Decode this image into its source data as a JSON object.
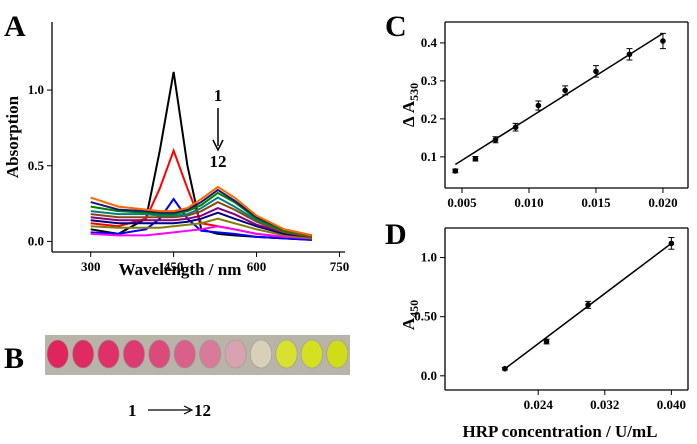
{
  "chart_data": [
    {
      "type": "line",
      "panel": "A",
      "xlabel": "Wavelength / nm",
      "ylabel": "Absorption",
      "annotations": [
        "1",
        "12"
      ],
      "x": [
        300,
        350,
        400,
        425,
        450,
        475,
        500,
        530,
        560,
        600,
        650,
        700
      ],
      "series": [
        {
          "color": "#000000",
          "values": [
            0.08,
            0.05,
            0.15,
            0.6,
            1.12,
            0.5,
            0.08,
            0.05,
            0.04,
            0.03,
            0.02,
            0.01
          ]
        },
        {
          "color": "#ff0000",
          "values": [
            0.12,
            0.1,
            0.15,
            0.35,
            0.6,
            0.35,
            0.12,
            0.1,
            0.08,
            0.05,
            0.03,
            0.02
          ]
        },
        {
          "color": "#0000ff",
          "values": [
            0.06,
            0.05,
            0.08,
            0.15,
            0.28,
            0.15,
            0.07,
            0.06,
            0.05,
            0.03,
            0.02,
            0.01
          ]
        },
        {
          "color": "#ff00ff",
          "values": [
            0.05,
            0.04,
            0.04,
            0.05,
            0.06,
            0.07,
            0.08,
            0.1,
            0.08,
            0.05,
            0.03,
            0.02
          ]
        },
        {
          "color": "#808000",
          "values": [
            0.1,
            0.09,
            0.09,
            0.09,
            0.1,
            0.11,
            0.12,
            0.15,
            0.12,
            0.08,
            0.04,
            0.02
          ]
        },
        {
          "color": "#000080",
          "values": [
            0.14,
            0.12,
            0.12,
            0.12,
            0.12,
            0.13,
            0.15,
            0.19,
            0.15,
            0.1,
            0.05,
            0.03
          ]
        },
        {
          "color": "#800080",
          "values": [
            0.16,
            0.14,
            0.14,
            0.14,
            0.14,
            0.15,
            0.17,
            0.22,
            0.18,
            0.11,
            0.06,
            0.03
          ]
        },
        {
          "color": "#8b4513",
          "values": [
            0.18,
            0.16,
            0.16,
            0.16,
            0.16,
            0.17,
            0.2,
            0.26,
            0.21,
            0.13,
            0.06,
            0.03
          ]
        },
        {
          "color": "#008080",
          "values": [
            0.2,
            0.18,
            0.18,
            0.17,
            0.17,
            0.18,
            0.22,
            0.29,
            0.23,
            0.14,
            0.07,
            0.04
          ]
        },
        {
          "color": "#008000",
          "values": [
            0.23,
            0.2,
            0.19,
            0.18,
            0.18,
            0.2,
            0.24,
            0.32,
            0.26,
            0.15,
            0.07,
            0.04
          ]
        },
        {
          "color": "#1a1a6e",
          "values": [
            0.26,
            0.21,
            0.2,
            0.19,
            0.19,
            0.21,
            0.26,
            0.34,
            0.27,
            0.16,
            0.08,
            0.04
          ]
        },
        {
          "color": "#ff6600",
          "values": [
            0.29,
            0.23,
            0.21,
            0.2,
            0.2,
            0.22,
            0.28,
            0.36,
            0.29,
            0.17,
            0.08,
            0.04
          ]
        }
      ],
      "xlim": [
        230,
        760
      ],
      "xticks": [
        300,
        450,
        600,
        750
      ],
      "ylim": [
        -0.07,
        1.45
      ],
      "yticks": [
        {
          "value": 0,
          "label": "0.0"
        },
        {
          "value": 0.5,
          "label": "0.5"
        },
        {
          "value": 1,
          "label": "1.0"
        }
      ]
    },
    {
      "type": "scatter",
      "panel": "C",
      "ylabel": "Δ A",
      "ylabel_sub": "530",
      "color": "#000000",
      "x": [
        0.0045,
        0.006,
        0.0075,
        0.009,
        0.0107,
        0.0127,
        0.015,
        0.0175,
        0.02
      ],
      "values": [
        0.063,
        0.095,
        0.145,
        0.178,
        0.235,
        0.275,
        0.325,
        0.37,
        0.405
      ],
      "errors": [
        0.005,
        0.006,
        0.008,
        0.01,
        0.012,
        0.012,
        0.015,
        0.015,
        0.02
      ],
      "fit": {
        "x": [
          0.0045,
          0.02
        ],
        "values": [
          0.08,
          0.425
        ]
      },
      "xlim": [
        0.00373,
        0.02187
      ],
      "xticks": [
        0.005,
        {
          "value": 0.01,
          "label": "0.010"
        },
        0.015,
        {
          "value": 0.02,
          "label": "0.020"
        }
      ],
      "ylim": [
        0.018,
        0.455
      ],
      "yticks": [
        0.1,
        0.2,
        0.3,
        0.4
      ]
    },
    {
      "type": "scatter",
      "panel": "D",
      "ylabel": "A",
      "ylabel_sub": "450",
      "xlabel": "HRP concentration / U/mL",
      "color": "#000000",
      "x": [
        0.02,
        0.025,
        0.03,
        0.04
      ],
      "values": [
        0.06,
        0.29,
        0.6,
        1.12
      ],
      "errors": [
        0.01,
        0.02,
        0.03,
        0.05
      ],
      "fit": {
        "x": [
          0.02,
          0.04
        ],
        "values": [
          0.06,
          1.12
        ]
      },
      "xlim": [
        0.0128,
        0.042
      ],
      "xticks": [
        0.024,
        0.032,
        {
          "value": 0.04,
          "label": "0.040"
        }
      ],
      "ylim": [
        -0.12,
        1.25
      ],
      "yticks": [
        {
          "value": 0,
          "label": "0.0"
        },
        {
          "value": 0.5,
          "label": "0.50"
        },
        {
          "value": 1,
          "label": "1.0"
        }
      ]
    }
  ],
  "panel_b": {
    "label": "B",
    "start": "1",
    "end": "12",
    "well_colors": [
      "#e0245e",
      "#e02a62",
      "#e0306a",
      "#de3a72",
      "#dc4a7c",
      "#da5f8a",
      "#d87a9a",
      "#d8a2b0",
      "#d8d0b8",
      "#d8e030",
      "#d4e020",
      "#d0dc18"
    ]
  }
}
